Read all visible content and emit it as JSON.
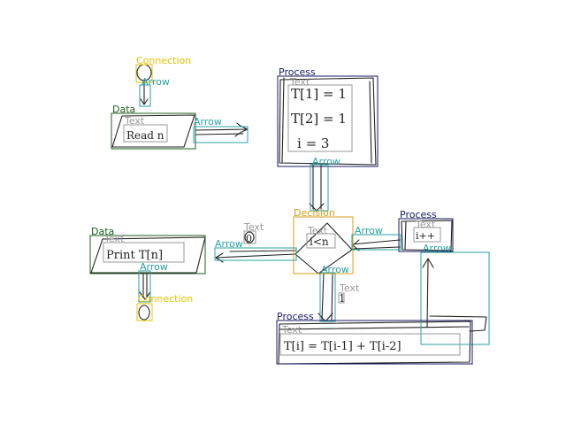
{
  "colors": {
    "connection": "#e6c300",
    "arrow": "#2aa0a0",
    "data": "#1d5e1d",
    "process": "#1a1a66",
    "decision": "#d4a017",
    "text": "#9a9a9a",
    "sketch": "#222222"
  },
  "labels": {
    "connection_top": "Connection",
    "connection_bottom": "Connection",
    "arrow_top": "Arrow",
    "arrow_data_read": "Arrow",
    "arrow_process_down": "Arrow",
    "arrow_right_in": "Arrow",
    "arrow_left_out": "Arrow",
    "arrow_decision_down": "Arrow",
    "arrow_data_print": "Arrow",
    "arrow_small_process": "Arrow",
    "data_read": "Data",
    "data_print": "Data",
    "process_main": "Process",
    "process_small": "Process",
    "process_bottom": "Process",
    "decision": "Decision",
    "text_read": "Text",
    "text_process_main": "Text",
    "text_decision": "Text",
    "text_small_process": "Text",
    "text_print": "Text",
    "text_bottom": "Text",
    "text_left_circle": "Text",
    "text_right_one": "Text"
  },
  "handwriting": {
    "read_n": "Read n",
    "init_1": "T[1] = 1",
    "init_2": "T[2] = 1",
    "init_3": "i = 3",
    "condition": "i<n",
    "increment": "i++",
    "print": "Print T[n]",
    "recurrence": "T[i] = T[i-1] + T[i-2]",
    "branch_no": "0",
    "branch_yes": "1"
  }
}
